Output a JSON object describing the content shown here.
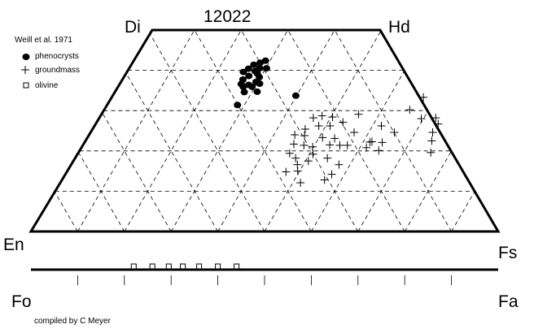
{
  "chart_data": {
    "type": "scatter",
    "diagram": "pyroxene quadrilateral (Di-Hd-En-Fs) with olivine Fo-Fa bar",
    "title": "12022",
    "corners": {
      "top_left": "Di",
      "top_right": "Hd",
      "bottom_left": "En",
      "bottom_right": "Fs"
    },
    "olivine_axis": {
      "left": "Fo",
      "right": "Fa"
    },
    "source": "Weill et al. 1971",
    "credit": "compiled by C Meyer",
    "axes": {
      "fs_range": [
        0,
        100
      ],
      "wo_range": [
        0,
        50
      ],
      "grid": "dashed triangular, 10 mol% Fs steps, 10 mol% Wo steps"
    },
    "legend": [
      {
        "name": "phenocrysts",
        "marker": "filled-circle"
      },
      {
        "name": "groundmass",
        "marker": "plus"
      },
      {
        "name": "olivine",
        "marker": "open-square"
      }
    ],
    "series": [
      {
        "name": "phenocrysts",
        "marker": "filled-circle",
        "points_fs_wo": [
          [
            26.2,
            41.4
          ],
          [
            27.3,
            41.9
          ],
          [
            28.2,
            42.4
          ],
          [
            25.6,
            40.4
          ],
          [
            27.9,
            40.5
          ],
          [
            28.1,
            39.2
          ],
          [
            29.4,
            40.5
          ],
          [
            27.3,
            39.8
          ],
          [
            26.6,
            38.6
          ],
          [
            29.0,
            38.3
          ],
          [
            25.8,
            37.7
          ],
          [
            28.9,
            37.1
          ],
          [
            27.7,
            36.4
          ],
          [
            29.9,
            36.7
          ],
          [
            26.8,
            35.9
          ],
          [
            28.7,
            35.9
          ],
          [
            27.7,
            34.6
          ],
          [
            30.4,
            34.7
          ],
          [
            27.9,
            31.4
          ],
          [
            39.2,
            33.7
          ],
          [
            24.9,
            39.6
          ],
          [
            26.0,
            36.6
          ]
        ]
      },
      {
        "name": "groundmass",
        "marker": "plus",
        "points_fs_wo": [
          [
            45.8,
            28.2
          ],
          [
            47.4,
            28.7
          ],
          [
            49.8,
            28.4
          ],
          [
            55.0,
            29.1
          ],
          [
            45.5,
            25.4
          ],
          [
            48.0,
            26.2
          ],
          [
            50.4,
            26.2
          ],
          [
            52.7,
            27.1
          ],
          [
            44.0,
            24.0
          ],
          [
            46.2,
            23.8
          ],
          [
            50.3,
            23.3
          ],
          [
            53.0,
            23.1
          ],
          [
            56.4,
            24.6
          ],
          [
            61.4,
            26.2
          ],
          [
            65.0,
            24.6
          ],
          [
            45.0,
            21.7
          ],
          [
            45.3,
            19.4
          ],
          [
            47.3,
            21.4
          ],
          [
            49.4,
            21.0
          ],
          [
            50.4,
            19.2
          ],
          [
            52.8,
            21.5
          ],
          [
            55.0,
            21.4
          ],
          [
            56.6,
            21.4
          ],
          [
            61.0,
            20.8
          ],
          [
            61.4,
            22.3
          ],
          [
            63.7,
            22.1
          ],
          [
            64.0,
            20.1
          ],
          [
            47.2,
            18.2
          ],
          [
            48.4,
            16.6
          ],
          [
            46.9,
            14.8
          ],
          [
            49.3,
            15.0
          ],
          [
            50.3,
            17.5
          ],
          [
            54.0,
            18.2
          ],
          [
            57.3,
            16.6
          ],
          [
            57.0,
            14.2
          ],
          [
            56.2,
            12.8
          ],
          [
            51.4,
            12.1
          ],
          [
            65.4,
            30.2
          ],
          [
            66.7,
            33.3
          ],
          [
            69.0,
            28.0
          ],
          [
            72.0,
            28.2
          ],
          [
            73.3,
            26.7
          ],
          [
            73.2,
            24.6
          ],
          [
            74.1,
            22.5
          ],
          [
            75.4,
            19.6
          ],
          [
            61.0,
            22.2
          ]
        ]
      },
      {
        "name": "olivine",
        "marker": "open-square",
        "fa_values": [
          22,
          26,
          29.5,
          32.5,
          36,
          40,
          44
        ]
      }
    ]
  }
}
